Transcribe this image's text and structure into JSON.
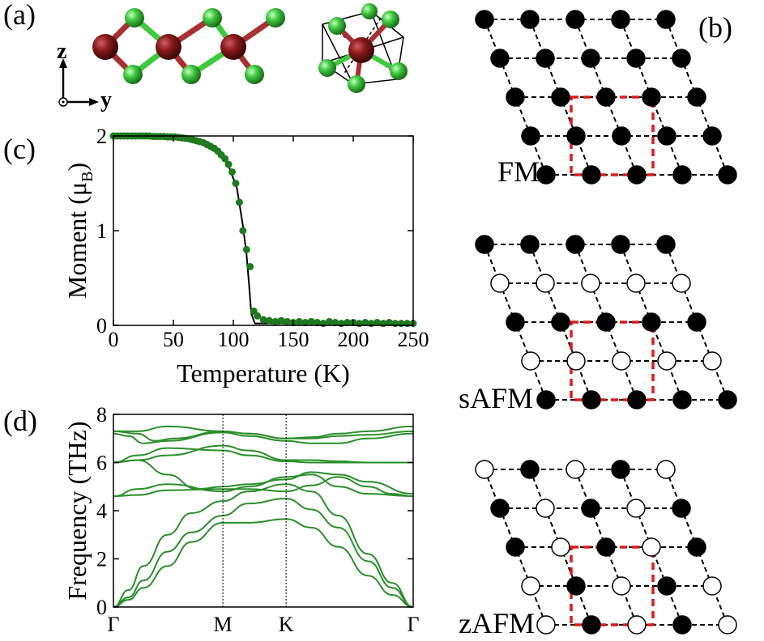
{
  "panel_labels": {
    "a": "(a)",
    "b": "(b)",
    "c": "(c)",
    "d": "(d)"
  },
  "axes_indicator": {
    "z": "z",
    "y": "y"
  },
  "colors": {
    "metal_atom": "#8b1a1a",
    "halide_atom": "#3ec93e",
    "magnetization": "#1f7a1f",
    "fit_line": "#000000",
    "phonon_bands": "#2a8f2a",
    "lattice_lines": "#000000",
    "unit_cell": "#e01818",
    "spin_up": "#000000",
    "spin_down": "#ffffff"
  },
  "magnetic_configs": [
    {
      "label": "FM",
      "rows": [
        "uuuuu",
        "uuuuu",
        "uuuuu",
        "uuuuu",
        "uuuuu"
      ]
    },
    {
      "label": "sAFM",
      "rows": [
        "uuuuu",
        "ddddd",
        "uuuuu",
        "ddddd",
        "uuuuu"
      ]
    },
    {
      "label": "zAFM",
      "rows": [
        "dudud",
        "ududu",
        "ududu",
        "dudud",
        "dudud"
      ]
    }
  ],
  "chart_data": [
    {
      "id": "c",
      "type": "scatter",
      "title": "",
      "xlabel": "Temperature (K)",
      "ylabel_main": "Moment (μ",
      "ylabel_sub": "B",
      "ylabel_end": ")",
      "xlim": [
        0,
        250
      ],
      "ylim": [
        0,
        2
      ],
      "xticks": [
        0,
        50,
        100,
        150,
        200,
        250
      ],
      "yticks": [
        0,
        1,
        2
      ],
      "series": [
        {
          "points": [
            [
              0,
              2.0
            ],
            [
              3,
              2.0
            ],
            [
              6,
              2.0
            ],
            [
              9,
              2.0
            ],
            [
              12,
              2.0
            ],
            [
              15,
              2.0
            ],
            [
              18,
              2.0
            ],
            [
              21,
              2.0
            ],
            [
              24,
              2.0
            ],
            [
              27,
              2.0
            ],
            [
              30,
              2.0
            ],
            [
              33,
              1.995
            ],
            [
              36,
              1.995
            ],
            [
              39,
              1.995
            ],
            [
              42,
              1.995
            ],
            [
              45,
              1.99
            ],
            [
              48,
              1.99
            ],
            [
              51,
              1.99
            ],
            [
              54,
              1.985
            ],
            [
              57,
              1.98
            ],
            [
              60,
              1.975
            ],
            [
              63,
              1.97
            ],
            [
              66,
              1.96
            ],
            [
              69,
              1.95
            ],
            [
              72,
              1.94
            ],
            [
              75,
              1.93
            ],
            [
              78,
              1.91
            ],
            [
              81,
              1.89
            ],
            [
              84,
              1.87
            ],
            [
              87,
              1.84
            ],
            [
              90,
              1.8
            ],
            [
              93,
              1.76
            ],
            [
              96,
              1.7
            ],
            [
              99,
              1.62
            ],
            [
              102,
              1.5
            ],
            [
              105,
              1.3
            ],
            [
              108,
              1.0
            ],
            [
              111,
              0.8
            ],
            [
              114,
              0.62
            ],
            [
              117,
              0.15
            ],
            [
              120,
              0.1
            ],
            [
              125,
              0.06
            ],
            [
              130,
              0.05
            ],
            [
              135,
              0.04
            ],
            [
              140,
              0.05
            ],
            [
              145,
              0.04
            ],
            [
              150,
              0.03
            ],
            [
              155,
              0.04
            ],
            [
              160,
              0.03
            ],
            [
              165,
              0.04
            ],
            [
              170,
              0.03
            ],
            [
              175,
              0.02
            ],
            [
              180,
              0.04
            ],
            [
              185,
              0.03
            ],
            [
              190,
              0.02
            ],
            [
              195,
              0.03
            ],
            [
              200,
              0.03
            ],
            [
              205,
              0.02
            ],
            [
              210,
              0.03
            ],
            [
              215,
              0.02
            ],
            [
              220,
              0.03
            ],
            [
              225,
              0.02
            ],
            [
              230,
              0.03
            ],
            [
              235,
              0.02
            ],
            [
              240,
              0.02
            ],
            [
              245,
              0.02
            ],
            [
              250,
              0.02
            ]
          ]
        }
      ],
      "fit_line": [
        [
          0,
          2.0
        ],
        [
          40,
          1.99
        ],
        [
          60,
          1.97
        ],
        [
          80,
          1.89
        ],
        [
          95,
          1.72
        ],
        [
          103,
          1.45
        ],
        [
          108,
          1.05
        ],
        [
          111,
          0.75
        ],
        [
          113,
          0.45
        ],
        [
          115,
          0.12
        ],
        [
          118,
          0.02
        ],
        [
          250,
          0.02
        ]
      ]
    },
    {
      "id": "d",
      "type": "line",
      "title": "",
      "ylabel": "Frequency (THz)",
      "xlim": [
        0,
        1
      ],
      "ylim": [
        0,
        8
      ],
      "yticks": [
        0,
        2,
        4,
        6,
        8
      ],
      "kpoint_labels": [
        "Γ",
        "M",
        "K",
        "Γ"
      ],
      "kpoint_positions": [
        0,
        0.3652,
        0.5761,
        1.0
      ],
      "bands": [
        [
          [
            0,
            0
          ],
          [
            0.05,
            0.3
          ],
          [
            0.1,
            0.8
          ],
          [
            0.18,
            1.7
          ],
          [
            0.26,
            2.7
          ],
          [
            0.3652,
            3.5
          ],
          [
            0.45,
            3.5
          ],
          [
            0.5761,
            3.65
          ],
          [
            0.66,
            3.3
          ],
          [
            0.75,
            2.5
          ],
          [
            0.85,
            1.3
          ],
          [
            0.93,
            0.5
          ],
          [
            1,
            0
          ]
        ],
        [
          [
            0,
            0
          ],
          [
            0.05,
            0.4
          ],
          [
            0.1,
            1.1
          ],
          [
            0.18,
            2.3
          ],
          [
            0.26,
            3.1
          ],
          [
            0.3652,
            3.8
          ],
          [
            0.45,
            4.3
          ],
          [
            0.5761,
            4.5
          ],
          [
            0.66,
            4.05
          ],
          [
            0.75,
            3.3
          ],
          [
            0.85,
            1.9
          ],
          [
            0.93,
            0.8
          ],
          [
            1,
            0
          ]
        ],
        [
          [
            0,
            0
          ],
          [
            0.05,
            0.7
          ],
          [
            0.1,
            1.7
          ],
          [
            0.18,
            3.0
          ],
          [
            0.26,
            3.9
          ],
          [
            0.3652,
            4.4
          ],
          [
            0.45,
            4.8
          ],
          [
            0.5761,
            5.1
          ],
          [
            0.66,
            4.8
          ],
          [
            0.75,
            3.8
          ],
          [
            0.85,
            2.2
          ],
          [
            0.93,
            1.0
          ],
          [
            1,
            0
          ]
        ],
        [
          [
            0,
            4.6
          ],
          [
            0.08,
            4.65
          ],
          [
            0.18,
            4.85
          ],
          [
            0.3652,
            4.9
          ],
          [
            0.45,
            4.9
          ],
          [
            0.5761,
            4.8
          ],
          [
            0.66,
            5.05
          ],
          [
            0.75,
            5.4
          ],
          [
            0.85,
            5.0
          ],
          [
            0.93,
            4.7
          ],
          [
            1,
            4.6
          ]
        ],
        [
          [
            0,
            4.6
          ],
          [
            0.08,
            4.9
          ],
          [
            0.18,
            5.1
          ],
          [
            0.3652,
            4.8
          ],
          [
            0.45,
            5.0
          ],
          [
            0.5761,
            5.4
          ],
          [
            0.66,
            5.5
          ],
          [
            0.75,
            5.0
          ],
          [
            0.85,
            4.7
          ],
          [
            1,
            4.6
          ]
        ],
        [
          [
            0,
            6.0
          ],
          [
            0.08,
            6.1
          ],
          [
            0.18,
            5.5
          ],
          [
            0.28,
            4.9
          ],
          [
            0.3652,
            5.0
          ],
          [
            0.45,
            5.1
          ],
          [
            0.5761,
            5.3
          ],
          [
            0.66,
            5.6
          ],
          [
            0.75,
            5.5
          ],
          [
            0.85,
            5.2
          ],
          [
            1,
            4.7
          ]
        ],
        [
          [
            0,
            6.0
          ],
          [
            0.08,
            6.1
          ],
          [
            0.18,
            6.3
          ],
          [
            0.3652,
            6.7
          ],
          [
            0.45,
            6.5
          ],
          [
            0.5761,
            6.1
          ],
          [
            0.66,
            6.1
          ],
          [
            0.75,
            6.05
          ],
          [
            0.85,
            6.0
          ],
          [
            1,
            6.0
          ]
        ],
        [
          [
            0,
            6.0
          ],
          [
            0.08,
            6.3
          ],
          [
            0.18,
            6.6
          ],
          [
            0.3652,
            6.5
          ],
          [
            0.45,
            6.3
          ],
          [
            0.5761,
            6.05
          ],
          [
            0.66,
            6.0
          ],
          [
            0.75,
            6.0
          ],
          [
            1,
            6.0
          ]
        ],
        [
          [
            0,
            7.2
          ],
          [
            0.05,
            7.1
          ],
          [
            0.1,
            6.8
          ],
          [
            0.18,
            6.9
          ],
          [
            0.3652,
            7.25
          ],
          [
            0.45,
            7.1
          ],
          [
            0.5761,
            6.9
          ],
          [
            0.66,
            6.8
          ],
          [
            0.75,
            6.8
          ],
          [
            0.85,
            7.0
          ],
          [
            1,
            7.2
          ]
        ],
        [
          [
            0,
            7.3
          ],
          [
            0.08,
            7.2
          ],
          [
            0.14,
            6.9
          ],
          [
            0.2,
            7.0
          ],
          [
            0.3652,
            7.3
          ],
          [
            0.45,
            7.2
          ],
          [
            0.5761,
            7.0
          ],
          [
            0.66,
            7.0
          ],
          [
            0.75,
            7.1
          ],
          [
            0.85,
            7.15
          ],
          [
            1,
            7.3
          ]
        ],
        [
          [
            0,
            7.3
          ],
          [
            0.08,
            7.3
          ],
          [
            0.18,
            7.5
          ],
          [
            0.3652,
            7.3
          ],
          [
            0.45,
            7.2
          ],
          [
            0.5761,
            7.0
          ],
          [
            0.66,
            7.05
          ],
          [
            0.75,
            7.2
          ],
          [
            0.85,
            7.3
          ],
          [
            1,
            7.5
          ]
        ]
      ]
    }
  ]
}
